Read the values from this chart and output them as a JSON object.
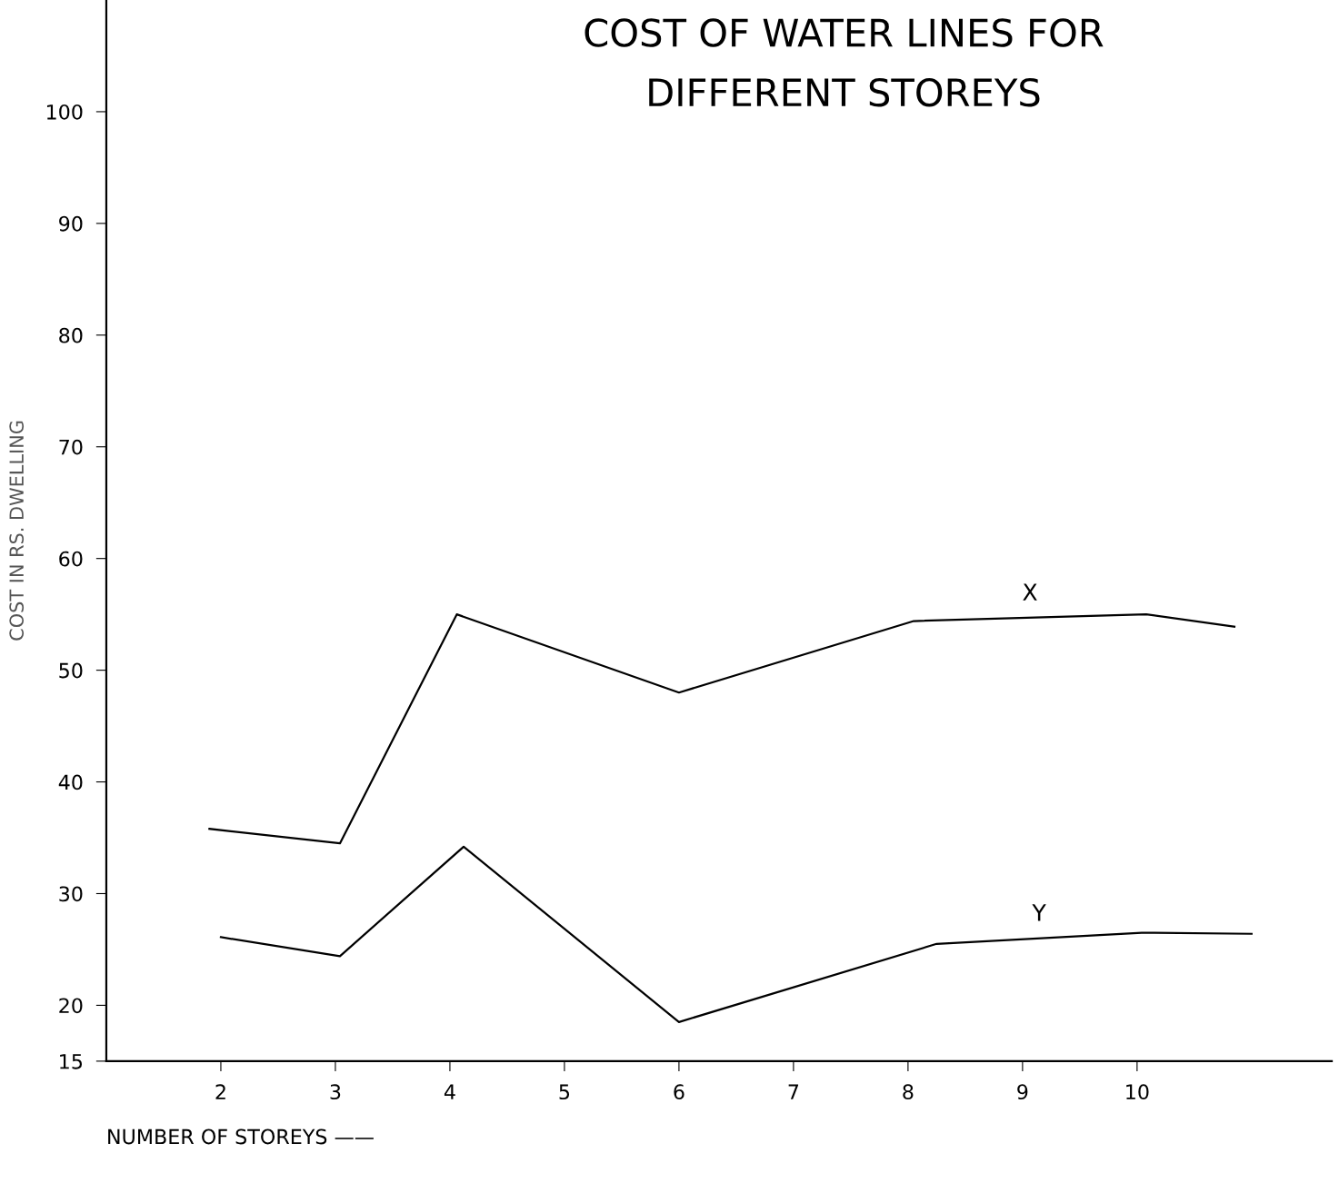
{
  "chart_data": {
    "type": "line",
    "title": "COST OF WATER LINES FOR\nDIFFERENT STOREYS",
    "xlabel": "NUMBER OF STOREYS ——",
    "ylabel": "COST IN RS. DWELLING",
    "series": [
      {
        "name": "X",
        "color": "#000000",
        "x": [
          1.9,
          3.04,
          4.06,
          6.0,
          8.05,
          10.08,
          10.85
        ],
        "values": [
          35.8,
          34.5,
          55.0,
          48.0,
          54.4,
          55.0,
          53.9
        ]
      },
      {
        "name": "Y",
        "color": "#000000",
        "x": [
          2.0,
          3.04,
          4.12,
          6.0,
          8.25,
          10.04,
          11.0
        ],
        "values": [
          26.1,
          24.4,
          34.2,
          18.5,
          25.5,
          26.5,
          26.4
        ]
      }
    ],
    "xlim": [
      1,
      11.7
    ],
    "ylim": [
      15,
      110
    ],
    "xticks": [
      2,
      3,
      4,
      5,
      6,
      7,
      8,
      9,
      10
    ],
    "yticks": [
      15,
      20,
      30,
      40,
      50,
      60,
      70,
      80,
      90,
      100
    ],
    "grid": false,
    "legend": false,
    "marker": "none",
    "line_style": "solid"
  }
}
